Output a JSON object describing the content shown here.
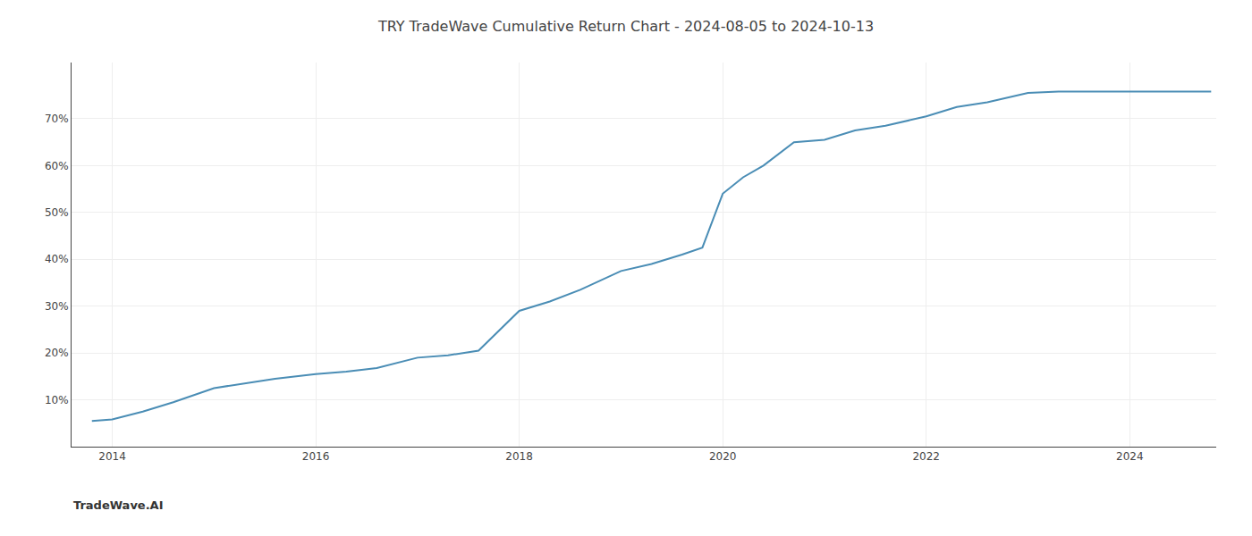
{
  "chart_data": {
    "type": "line",
    "title": "TRY TradeWave Cumulative Return Chart - 2024-08-05 to 2024-10-13",
    "annotations": [
      {
        "text": "TradeWave.AI"
      }
    ],
    "x": [
      2013.8,
      2014.0,
      2014.3,
      2014.6,
      2015.0,
      2015.3,
      2015.6,
      2016.0,
      2016.3,
      2016.6,
      2017.0,
      2017.3,
      2017.6,
      2018.0,
      2018.3,
      2018.6,
      2019.0,
      2019.3,
      2019.6,
      2019.8,
      2020.0,
      2020.2,
      2020.4,
      2020.7,
      2021.0,
      2021.3,
      2021.6,
      2022.0,
      2022.3,
      2022.6,
      2023.0,
      2023.3,
      2023.5,
      2023.8,
      2024.0,
      2024.5,
      2024.8
    ],
    "values": [
      5.5,
      5.8,
      7.5,
      9.5,
      12.5,
      13.5,
      14.5,
      15.5,
      16.0,
      16.8,
      19.0,
      19.5,
      20.5,
      29.0,
      31.0,
      33.5,
      37.5,
      39.0,
      41.0,
      42.5,
      54.0,
      57.5,
      60.0,
      65.0,
      65.5,
      67.5,
      68.5,
      70.5,
      72.5,
      73.5,
      75.5,
      75.8,
      75.8,
      75.8,
      75.8,
      75.8,
      75.8
    ],
    "color": "#4a8db5",
    "xlim": [
      2013.6,
      2024.85
    ],
    "ylim": [
      0,
      82
    ],
    "xticks": [
      2014,
      2016,
      2018,
      2020,
      2022,
      2024
    ],
    "yticks": [
      {
        "value": 10,
        "label": "10%"
      },
      {
        "value": 20,
        "label": "20%"
      },
      {
        "value": 30,
        "label": "30%"
      },
      {
        "value": 40,
        "label": "40%"
      },
      {
        "value": 50,
        "label": "50%"
      },
      {
        "value": 60,
        "label": "60%"
      },
      {
        "value": 70,
        "label": "70%"
      }
    ],
    "grid": true
  }
}
